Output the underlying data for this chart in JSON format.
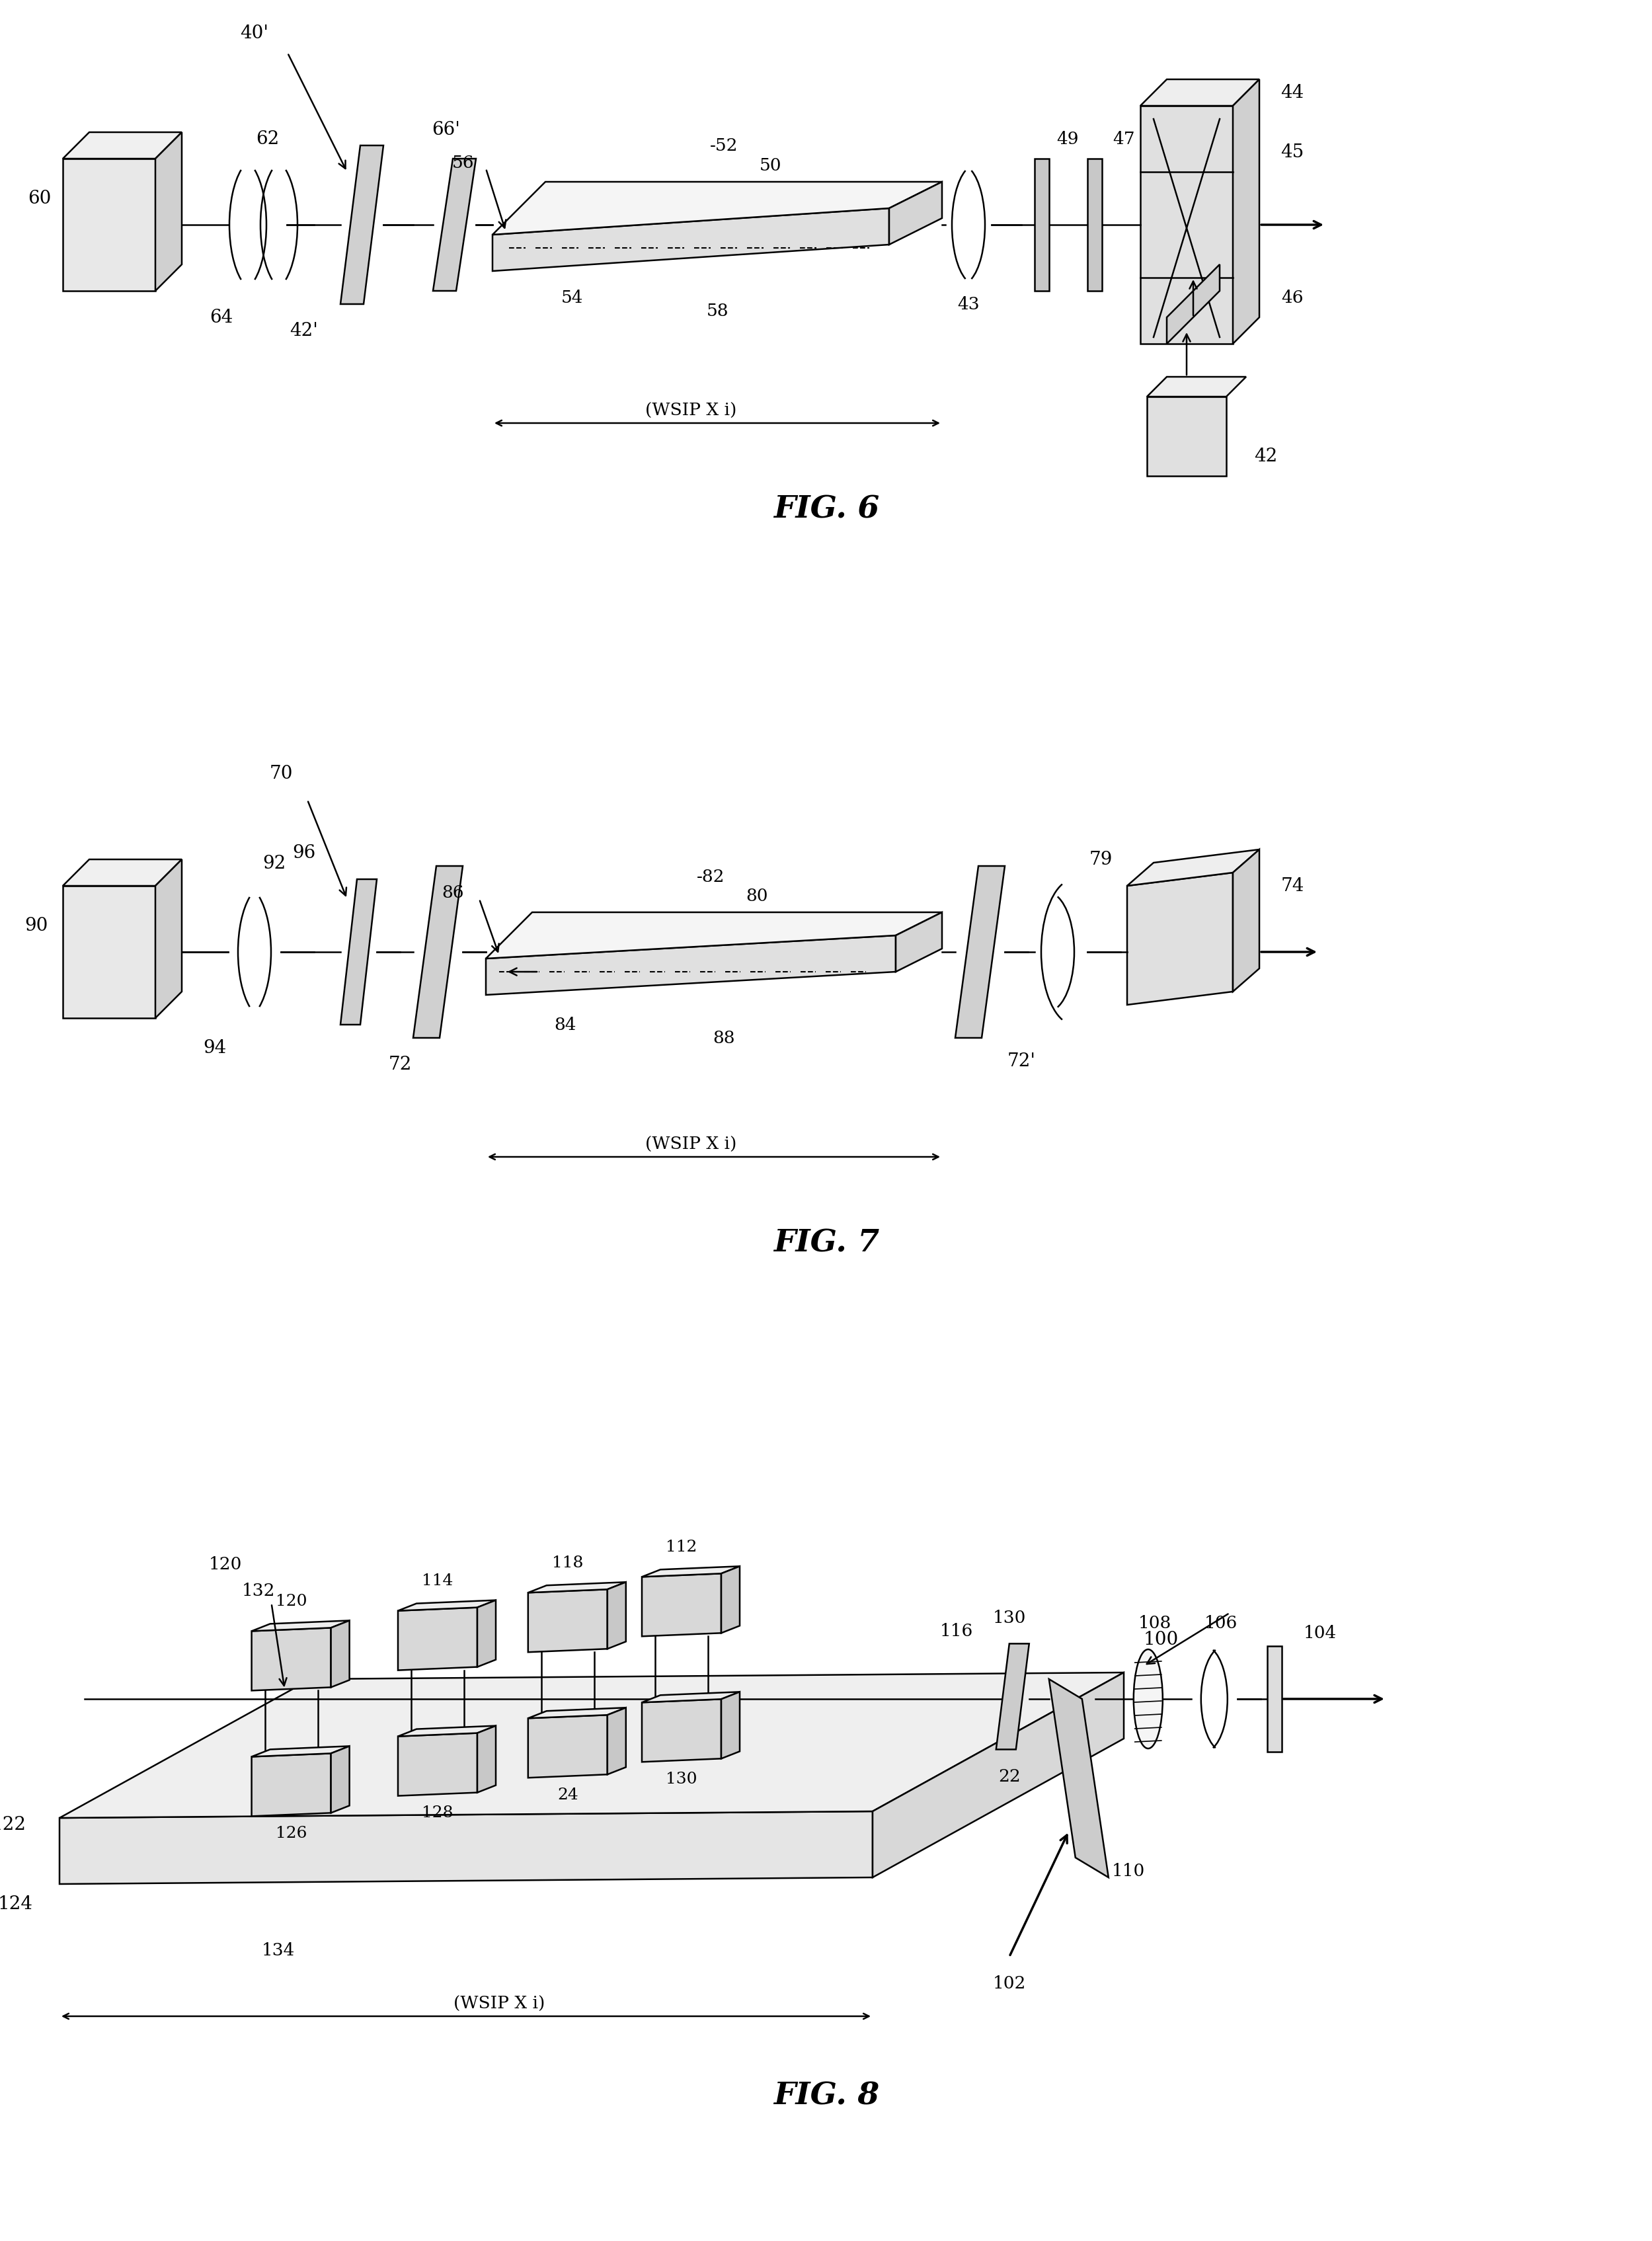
{
  "fig_width": 24.99,
  "fig_height": 33.91,
  "background_color": "#ffffff",
  "line_color": "#000000",
  "fig6_title": "FIG. 6",
  "fig7_title": "FIG. 7",
  "fig8_title": "FIG. 8"
}
